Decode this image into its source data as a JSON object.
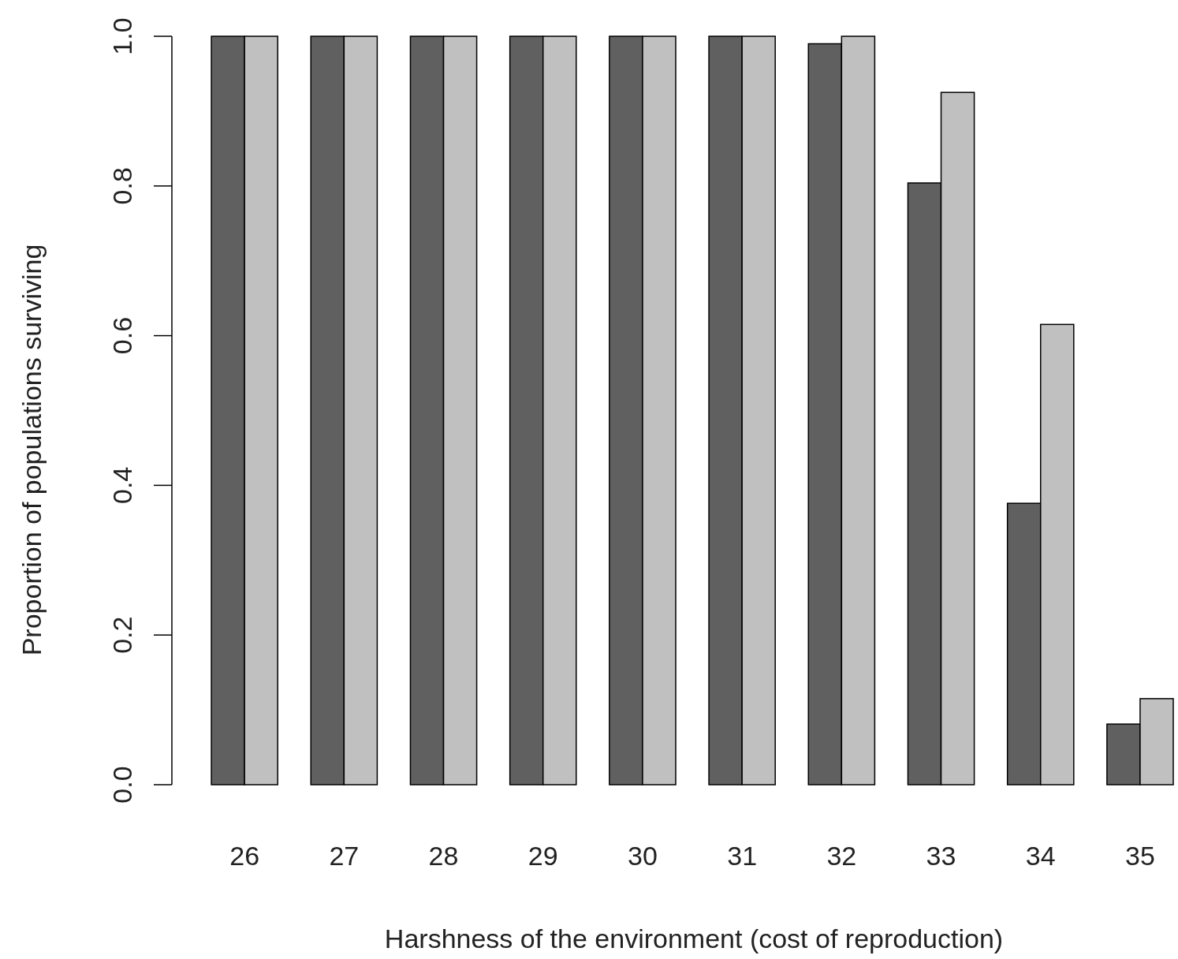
{
  "chart_data": {
    "type": "bar",
    "xlabel": "Harshness of the environment (cost of reproduction)",
    "ylabel": "Proportion of populations surviving",
    "categories": [
      "26",
      "27",
      "28",
      "29",
      "30",
      "31",
      "32",
      "33",
      "34",
      "35"
    ],
    "series": [
      {
        "color": "#606060",
        "values": [
          1,
          1,
          1,
          1,
          1,
          1,
          0.99,
          0.804,
          0.376,
          0.081
        ]
      },
      {
        "color": "#c0c0c0",
        "values": [
          1,
          1,
          1,
          1,
          1,
          1,
          1,
          0.925,
          0.615,
          0.115
        ]
      }
    ],
    "ylim": [
      0,
      1
    ],
    "yticks": [
      {
        "value": 0,
        "label": "0.0"
      },
      {
        "value": 0.2,
        "label": "0.2"
      },
      {
        "value": 0.4,
        "label": "0.4"
      },
      {
        "value": 0.6,
        "label": "0.6"
      },
      {
        "value": 0.8,
        "label": "0.8"
      },
      {
        "value": 1,
        "label": "1.0"
      }
    ],
    "grid": false
  }
}
